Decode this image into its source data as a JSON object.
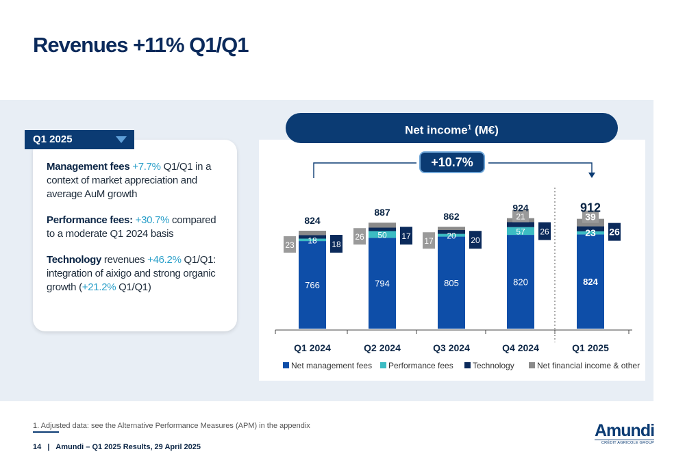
{
  "title": "Revenues +11% Q1/Q1",
  "period_tag": "Q1 2025",
  "kpis": [
    {
      "label": "Management fees",
      "value": "+7.7%",
      "text": " Q1/Q1 in a context of market appreciation and average AuM growth"
    },
    {
      "label": "Performance fees:",
      "value": "+30.7%",
      "text": " compared to a moderate Q1 2024 basis"
    },
    {
      "label": "Technology",
      "value": "+46.2%",
      "text_before": " revenues ",
      "text": " Q1/Q1: integration of aixigo and strong organic growth (",
      "value2": "+21.2%",
      "text_after": " Q1/Q1)"
    }
  ],
  "chart_header": {
    "text": "Net income",
    "sup": "1",
    "unit": " (M€)"
  },
  "growth_label": "+10.7%",
  "colors": {
    "mgmt": "#0e4ea8",
    "perf": "#3cbcc3",
    "tech": "#0b2a5b",
    "other": "#8a8a8a",
    "navy": "#0b3b73"
  },
  "chart_data": {
    "type": "bar",
    "stacked": true,
    "categories": [
      "Q1 2024",
      "Q2 2024",
      "Q3 2024",
      "Q4 2024",
      "Q1 2025"
    ],
    "series": [
      {
        "name": "Net management fees",
        "values": [
          766,
          794,
          805,
          820,
          824
        ]
      },
      {
        "name": "Performance fees",
        "values": [
          18,
          50,
          20,
          57,
          23
        ]
      },
      {
        "name": "Technology",
        "values": [
          18,
          17,
          20,
          26,
          26
        ]
      },
      {
        "name": "Net financial income & other",
        "values": [
          23,
          26,
          17,
          21,
          39
        ]
      }
    ],
    "totals": [
      824,
      887,
      862,
      924,
      912
    ],
    "legend_position": "bottom"
  },
  "footnote": "1. Adjusted data: see the Alternative Performance Measures (APM) in the appendix",
  "footer": {
    "page": "14",
    "text": "Amundi – Q1 2025 Results, 29 April 2025"
  },
  "logo": {
    "name": "Amundi",
    "subtitle": "CRÉDIT AGRICOLE GROUP"
  }
}
